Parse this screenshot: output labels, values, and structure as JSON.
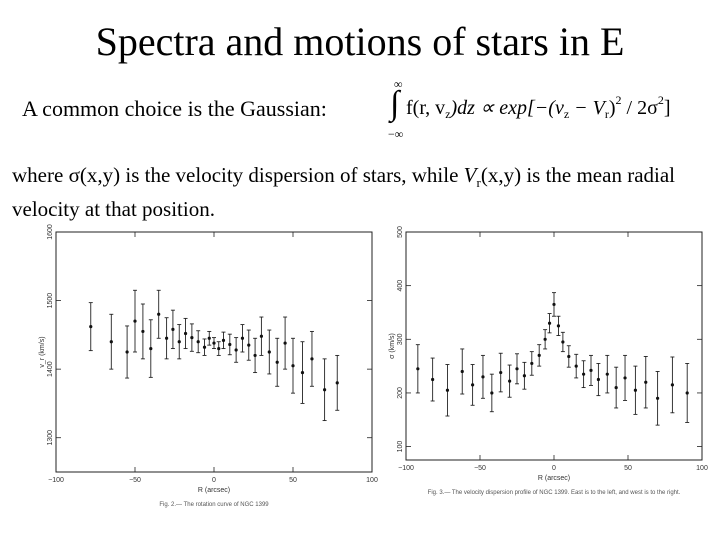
{
  "slide": {
    "title": "Spectra and motions of stars in E",
    "intro": "A common choice is the Gaussian:",
    "formula": {
      "upper_limit": "∞",
      "lower_limit": "−∞",
      "integrand": "f(r, v",
      "sub_z": "z",
      "after_integrand": ")dz ∝ exp[−(v",
      "minus_v": " − V",
      "sub_r": "r",
      "tail": ")",
      "sup_2": "2",
      "over": " / 2σ",
      "end": "]"
    },
    "para": {
      "p1": "where ",
      "sigma": "σ",
      "p2": "(x,y) is the velocity dispersion of stars, while ",
      "V": "V",
      "r": "r",
      "p3": "(x,y) is the mean radial velocity at that position."
    }
  },
  "chart_data": [
    {
      "type": "scatter",
      "title": "",
      "caption": "Fig. 2.— The rotation curve of NGC 1399",
      "xlabel": "R (arcsec)",
      "ylabel": "v_r (km/s)",
      "xlim": [
        -100,
        100
      ],
      "ylim": [
        1250,
        1600
      ],
      "xticks": [
        -100,
        -50,
        0,
        50,
        100
      ],
      "yticks": [
        1300,
        1400,
        1500,
        1600
      ],
      "points": [
        {
          "x": -78,
          "y": 1462,
          "err": 35
        },
        {
          "x": -65,
          "y": 1440,
          "err": 40
        },
        {
          "x": -55,
          "y": 1425,
          "err": 38
        },
        {
          "x": -50,
          "y": 1470,
          "err": 45
        },
        {
          "x": -45,
          "y": 1455,
          "err": 40
        },
        {
          "x": -40,
          "y": 1430,
          "err": 42
        },
        {
          "x": -35,
          "y": 1480,
          "err": 35
        },
        {
          "x": -30,
          "y": 1445,
          "err": 30
        },
        {
          "x": -26,
          "y": 1458,
          "err": 28
        },
        {
          "x": -22,
          "y": 1440,
          "err": 25
        },
        {
          "x": -18,
          "y": 1452,
          "err": 22
        },
        {
          "x": -14,
          "y": 1446,
          "err": 20
        },
        {
          "x": -10,
          "y": 1440,
          "err": 16
        },
        {
          "x": -6,
          "y": 1432,
          "err": 12
        },
        {
          "x": -3,
          "y": 1445,
          "err": 10
        },
        {
          "x": 0,
          "y": 1438,
          "err": 8
        },
        {
          "x": 3,
          "y": 1430,
          "err": 10
        },
        {
          "x": 6,
          "y": 1442,
          "err": 12
        },
        {
          "x": 10,
          "y": 1436,
          "err": 15
        },
        {
          "x": 14,
          "y": 1428,
          "err": 18
        },
        {
          "x": 18,
          "y": 1445,
          "err": 20
        },
        {
          "x": 22,
          "y": 1435,
          "err": 22
        },
        {
          "x": 26,
          "y": 1420,
          "err": 25
        },
        {
          "x": 30,
          "y": 1448,
          "err": 28
        },
        {
          "x": 35,
          "y": 1425,
          "err": 32
        },
        {
          "x": 40,
          "y": 1410,
          "err": 35
        },
        {
          "x": 45,
          "y": 1438,
          "err": 38
        },
        {
          "x": 50,
          "y": 1405,
          "err": 40
        },
        {
          "x": 56,
          "y": 1395,
          "err": 45
        },
        {
          "x": 62,
          "y": 1415,
          "err": 40
        },
        {
          "x": 70,
          "y": 1370,
          "err": 45
        },
        {
          "x": 78,
          "y": 1380,
          "err": 40
        }
      ]
    },
    {
      "type": "scatter",
      "title": "",
      "caption": "Fig. 3.— The velocity dispersion profile of NGC 1399. East is to the left, and west is to the right.",
      "xlabel": "R (arcsec)",
      "ylabel": "σ (km/s)",
      "xlim": [
        -100,
        100
      ],
      "ylim": [
        75,
        500
      ],
      "xticks": [
        -100,
        -50,
        0,
        50,
        100
      ],
      "yticks": [
        100,
        200,
        300,
        400,
        500
      ],
      "points": [
        {
          "x": -92,
          "y": 245,
          "err": 45
        },
        {
          "x": -82,
          "y": 225,
          "err": 40
        },
        {
          "x": -72,
          "y": 205,
          "err": 48
        },
        {
          "x": -62,
          "y": 240,
          "err": 42
        },
        {
          "x": -55,
          "y": 215,
          "err": 38
        },
        {
          "x": -48,
          "y": 230,
          "err": 40
        },
        {
          "x": -42,
          "y": 200,
          "err": 35
        },
        {
          "x": -36,
          "y": 238,
          "err": 36
        },
        {
          "x": -30,
          "y": 222,
          "err": 30
        },
        {
          "x": -25,
          "y": 245,
          "err": 28
        },
        {
          "x": -20,
          "y": 232,
          "err": 25
        },
        {
          "x": -15,
          "y": 255,
          "err": 22
        },
        {
          "x": -10,
          "y": 270,
          "err": 20
        },
        {
          "x": -6,
          "y": 300,
          "err": 18
        },
        {
          "x": -3,
          "y": 330,
          "err": 18
        },
        {
          "x": 0,
          "y": 365,
          "err": 22
        },
        {
          "x": 3,
          "y": 325,
          "err": 18
        },
        {
          "x": 6,
          "y": 295,
          "err": 18
        },
        {
          "x": 10,
          "y": 268,
          "err": 20
        },
        {
          "x": 15,
          "y": 250,
          "err": 22
        },
        {
          "x": 20,
          "y": 235,
          "err": 25
        },
        {
          "x": 25,
          "y": 242,
          "err": 28
        },
        {
          "x": 30,
          "y": 225,
          "err": 30
        },
        {
          "x": 36,
          "y": 235,
          "err": 35
        },
        {
          "x": 42,
          "y": 210,
          "err": 38
        },
        {
          "x": 48,
          "y": 228,
          "err": 42
        },
        {
          "x": 55,
          "y": 205,
          "err": 45
        },
        {
          "x": 62,
          "y": 220,
          "err": 48
        },
        {
          "x": 70,
          "y": 190,
          "err": 50
        },
        {
          "x": 80,
          "y": 215,
          "err": 52
        },
        {
          "x": 90,
          "y": 200,
          "err": 55
        }
      ]
    }
  ]
}
